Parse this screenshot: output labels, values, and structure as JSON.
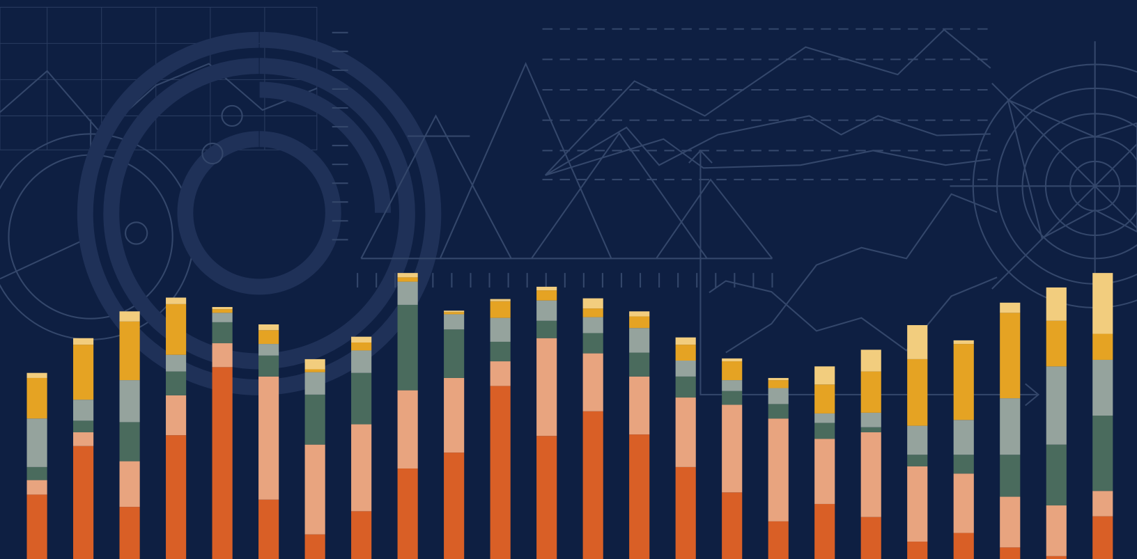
{
  "chart_data": {
    "type": "bar",
    "stacked": true,
    "ylim": [
      0,
      772
    ],
    "series": [
      {
        "color": "#d95f26",
        "values": [
          89,
          156,
          72,
          171,
          265,
          82,
          34,
          66,
          125,
          147,
          239,
          170,
          204,
          172,
          127,
          92,
          52,
          76,
          58,
          24,
          36,
          16,
          4,
          59
        ]
      },
      {
        "color": "#e8a47f",
        "values": [
          20,
          19,
          63,
          55,
          33,
          170,
          124,
          120,
          108,
          103,
          34,
          135,
          80,
          80,
          96,
          121,
          142,
          90,
          117,
          104,
          82,
          70,
          70,
          35
        ]
      },
      {
        "color": "#4a6b5d",
        "values": [
          18,
          16,
          54,
          33,
          29,
          29,
          69,
          71,
          118,
          67,
          27,
          24,
          28,
          33,
          29,
          19,
          20,
          22,
          7,
          16,
          26,
          58,
          84,
          104
        ]
      },
      {
        "color": "#95a39d",
        "values": [
          67,
          29,
          58,
          23,
          13,
          16,
          31,
          31,
          32,
          21,
          33,
          28,
          22,
          34,
          22,
          15,
          22,
          13,
          20,
          40,
          48,
          78,
          108,
          77
        ]
      },
      {
        "color": "#e5a323",
        "values": [
          56,
          76,
          81,
          70,
          5,
          19,
          4,
          11,
          6,
          3,
          23,
          14,
          12,
          16,
          22,
          26,
          11,
          40,
          57,
          92,
          105,
          118,
          63,
          36
        ]
      },
      {
        "color": "#f2cd7e",
        "values": [
          7,
          9,
          14,
          9,
          3,
          8,
          14,
          8,
          6,
          2,
          3,
          5,
          14,
          7,
          10,
          4,
          3,
          25,
          30,
          47,
          5,
          14,
          46,
          84
        ]
      }
    ]
  }
}
